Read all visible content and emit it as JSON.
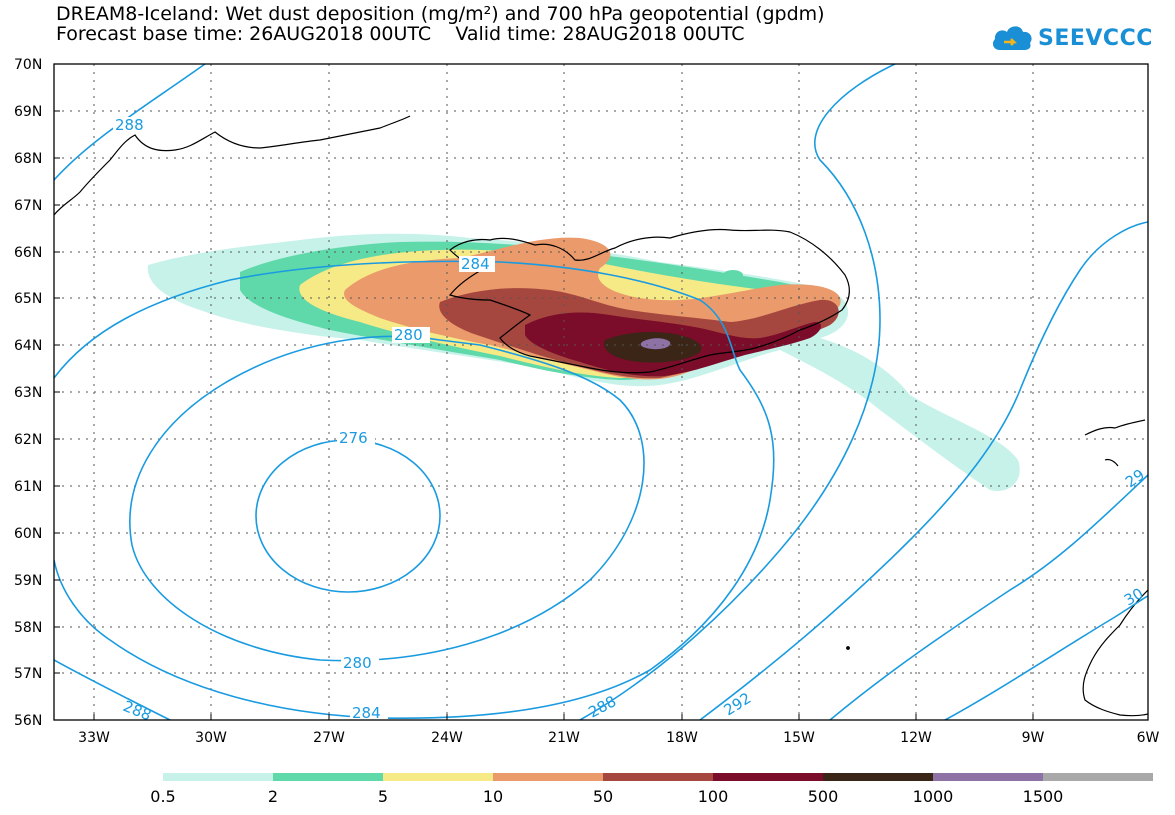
{
  "title": {
    "line1": "DREAM8-Iceland: Wet dust deposition (mg/m²) and 700 hPa geopotential (gpdm)",
    "line2": "Forecast base time: 26AUG2018 00UTC    Valid time: 28AUG2018 00UTC"
  },
  "logo": {
    "text": "SEEVCCC",
    "icon": "cloud-icon"
  },
  "axes": {
    "lat_labels": [
      "70N",
      "69N",
      "68N",
      "67N",
      "66N",
      "65N",
      "64N",
      "63N",
      "62N",
      "61N",
      "60N",
      "59N",
      "58N",
      "57N",
      "56N"
    ],
    "lon_labels": [
      "33W",
      "30W",
      "27W",
      "24W",
      "21W",
      "18W",
      "15W",
      "12W",
      "9W",
      "6W"
    ]
  },
  "contour_labels": [
    "288",
    "284",
    "280",
    "276",
    "280",
    "284",
    "288",
    "288",
    "292",
    "29",
    "30"
  ],
  "colorbar": {
    "colors": [
      "#c6f2ea",
      "#5fd9a9",
      "#f6ea87",
      "#ea9a6b",
      "#a6473f",
      "#7b0d2a",
      "#3a2516",
      "#8e72a6",
      "#a8a8a8"
    ],
    "labels": [
      "0.5",
      "2",
      "5",
      "10",
      "50",
      "100",
      "500",
      "1000",
      "1500"
    ]
  },
  "colors": {
    "contour": "#1a9be0",
    "coast": "#000000"
  }
}
